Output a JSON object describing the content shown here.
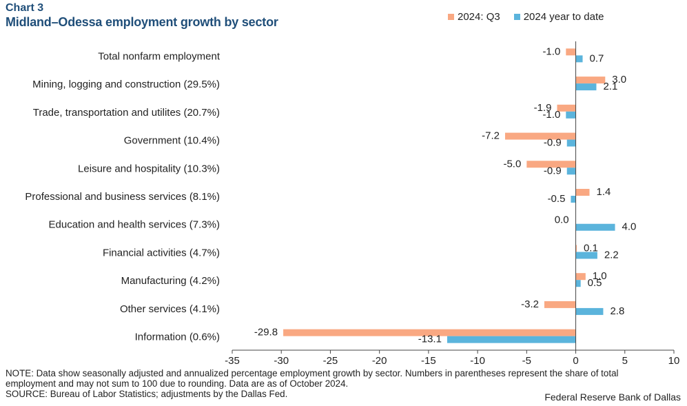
{
  "header": {
    "chart_number": "Chart 3",
    "title": "Midland–Odessa employment growth by sector"
  },
  "colors": {
    "q3": "#f9a882",
    "ytd": "#5bb4dc",
    "axis": "#444444",
    "title": "#1f4e79"
  },
  "chart_data": {
    "type": "bar",
    "orientation": "horizontal",
    "title": "Midland–Odessa employment growth by sector",
    "xlabel": "",
    "ylabel": "",
    "xlim": [
      -35,
      10
    ],
    "xticks": [
      -35,
      -30,
      -25,
      -20,
      -15,
      -10,
      -5,
      0,
      5,
      10
    ],
    "grid": false,
    "legend_position": "top-right",
    "categories": [
      "Total nonfarm employment",
      "Mining, logging and construction (29.5%)",
      "Trade, transportation and utilites (20.7%)",
      "Government (10.4%)",
      "Leisure and hospitality (10.3%)",
      "Professional and business services (8.1%)",
      "Education and health services (7.3%)",
      "Financial activities (4.7%)",
      "Manufacturing (4.2%)",
      "Other services (4.1%)",
      "Information (0.6%)"
    ],
    "series": [
      {
        "name": "2024: Q3",
        "values": [
          -1.0,
          3.0,
          -1.9,
          -7.2,
          -5.0,
          1.4,
          0.0,
          0.1,
          1.0,
          -3.2,
          -29.8
        ],
        "labels": [
          "-1.0",
          "3.0",
          "-1.9",
          "-7.2",
          "-5.0",
          "1.4",
          "0.0",
          "0.1",
          "1.0",
          "-3.2",
          "-29.8"
        ]
      },
      {
        "name": "2024 year to date",
        "values": [
          0.7,
          2.1,
          -1.0,
          -0.9,
          -0.9,
          -0.5,
          4.0,
          2.2,
          0.5,
          2.8,
          -13.1
        ],
        "labels": [
          "0.7",
          "2.1",
          "-1.0",
          "-0.9",
          "-0.9",
          "-0.5",
          "4.0",
          "2.2",
          "0.5",
          "2.8",
          "-13.1"
        ]
      }
    ]
  },
  "footer": {
    "note_line1": "NOTE: Data show seasonally adjusted and annualized percentage employment growth by sector. Numbers in parentheses represent the share of total",
    "note_line2": "employment and may not sum to 100 due to rounding.  Data are as of October 2024.",
    "source": "SOURCE: Bureau of Labor Statistics; adjustments by the Dallas Fed.",
    "credit": "Federal Reserve Bank of Dallas"
  }
}
